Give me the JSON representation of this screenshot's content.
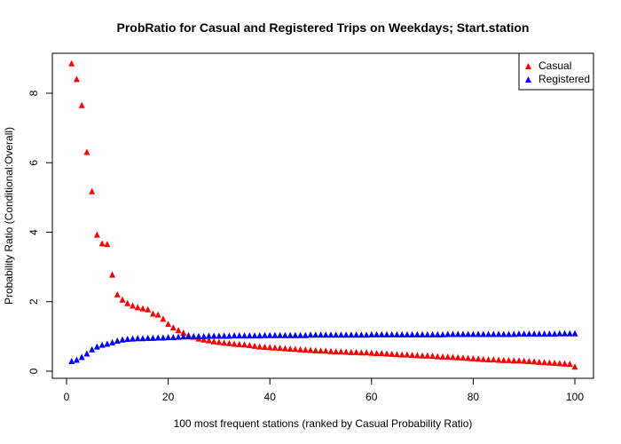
{
  "chart_data": {
    "type": "scatter",
    "title": "ProbRatio for Casual and Registered Trips on Weekdays; Start.station",
    "xlabel": "100 most frequent stations (ranked by Casual Probability Ratio)",
    "ylabel": "Probability Ratio (Conditional:Overall)",
    "xlim": [
      0,
      100
    ],
    "ylim": [
      0,
      9
    ],
    "x_ticks": [
      "0",
      "20",
      "40",
      "60",
      "80",
      "100"
    ],
    "y_ticks": [
      "0",
      "2",
      "4",
      "6",
      "8"
    ],
    "grid": false,
    "legend_position": "top-right",
    "marker": "triangle",
    "x": [
      1,
      2,
      3,
      4,
      5,
      6,
      7,
      8,
      9,
      10,
      11,
      12,
      13,
      14,
      15,
      16,
      17,
      18,
      19,
      20,
      21,
      22,
      23,
      24,
      25,
      26,
      27,
      28,
      29,
      30,
      31,
      32,
      33,
      34,
      35,
      36,
      37,
      38,
      39,
      40,
      41,
      42,
      43,
      44,
      45,
      46,
      47,
      48,
      49,
      50,
      51,
      52,
      53,
      54,
      55,
      56,
      57,
      58,
      59,
      60,
      61,
      62,
      63,
      64,
      65,
      66,
      67,
      68,
      69,
      70,
      71,
      72,
      73,
      74,
      75,
      76,
      77,
      78,
      79,
      80,
      81,
      82,
      83,
      84,
      85,
      86,
      87,
      88,
      89,
      90,
      91,
      92,
      93,
      94,
      95,
      96,
      97,
      98,
      99,
      100
    ],
    "series": [
      {
        "name": "Casual",
        "color": "#ff0000",
        "values": [
          8.85,
          8.4,
          7.65,
          6.3,
          5.17,
          3.92,
          3.67,
          3.65,
          2.77,
          2.2,
          2.05,
          1.95,
          1.88,
          1.83,
          1.8,
          1.77,
          1.65,
          1.62,
          1.5,
          1.35,
          1.25,
          1.17,
          1.1,
          1.03,
          0.98,
          0.93,
          0.9,
          0.88,
          0.85,
          0.83,
          0.81,
          0.8,
          0.78,
          0.77,
          0.76,
          0.74,
          0.72,
          0.7,
          0.69,
          0.68,
          0.67,
          0.66,
          0.65,
          0.64,
          0.63,
          0.62,
          0.61,
          0.6,
          0.59,
          0.58,
          0.58,
          0.57,
          0.56,
          0.56,
          0.55,
          0.54,
          0.54,
          0.53,
          0.53,
          0.52,
          0.51,
          0.51,
          0.5,
          0.49,
          0.48,
          0.47,
          0.47,
          0.46,
          0.45,
          0.44,
          0.44,
          0.43,
          0.42,
          0.41,
          0.41,
          0.4,
          0.39,
          0.38,
          0.37,
          0.36,
          0.35,
          0.34,
          0.33,
          0.33,
          0.32,
          0.31,
          0.31,
          0.3,
          0.3,
          0.29,
          0.28,
          0.27,
          0.26,
          0.25,
          0.24,
          0.23,
          0.22,
          0.21,
          0.2,
          0.12
        ]
      },
      {
        "name": "Registered",
        "color": "#0000ff",
        "values": [
          0.28,
          0.32,
          0.4,
          0.5,
          0.62,
          0.7,
          0.75,
          0.78,
          0.82,
          0.87,
          0.9,
          0.92,
          0.93,
          0.94,
          0.94,
          0.95,
          0.95,
          0.96,
          0.96,
          0.97,
          0.97,
          0.98,
          0.99,
          0.99,
          1.0,
          1.0,
          1.0,
          1.01,
          1.01,
          1.01,
          1.01,
          1.01,
          1.02,
          1.02,
          1.02,
          1.02,
          1.02,
          1.02,
          1.03,
          1.03,
          1.03,
          1.03,
          1.03,
          1.03,
          1.03,
          1.03,
          1.03,
          1.04,
          1.04,
          1.04,
          1.04,
          1.04,
          1.04,
          1.04,
          1.04,
          1.04,
          1.04,
          1.04,
          1.04,
          1.05,
          1.05,
          1.05,
          1.05,
          1.05,
          1.05,
          1.05,
          1.05,
          1.05,
          1.05,
          1.05,
          1.05,
          1.05,
          1.05,
          1.05,
          1.06,
          1.06,
          1.06,
          1.06,
          1.06,
          1.06,
          1.06,
          1.06,
          1.06,
          1.06,
          1.06,
          1.06,
          1.06,
          1.06,
          1.07,
          1.07,
          1.07,
          1.07,
          1.07,
          1.07,
          1.07,
          1.07,
          1.08,
          1.08,
          1.08,
          1.08
        ]
      }
    ]
  }
}
